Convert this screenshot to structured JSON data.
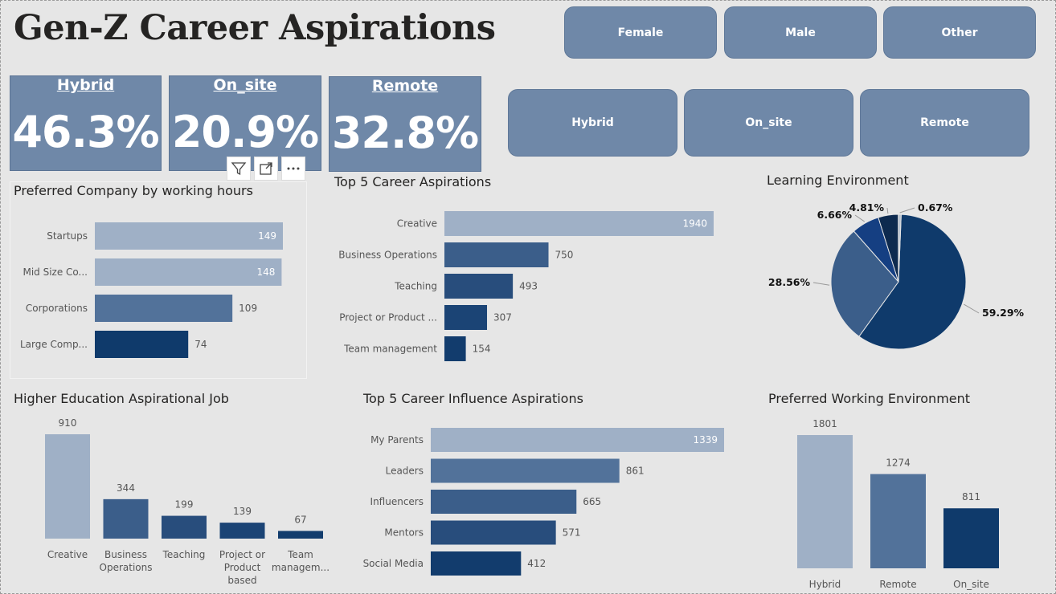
{
  "page": {
    "title": "Gen-Z Career Aspirations"
  },
  "slicers": {
    "gender": [
      "Female",
      "Male",
      "Other"
    ],
    "work_mode": [
      "Hybrid",
      "On_site",
      "Remote"
    ]
  },
  "kpis": [
    {
      "label": "Hybrid",
      "value": "46.3%"
    },
    {
      "label": "On_site",
      "value": "20.9%"
    },
    {
      "label": "Remote",
      "value": "32.8%"
    }
  ],
  "visual_header": {
    "filter_icon": "filter-icon",
    "focus_icon": "focus-mode-icon",
    "more_icon": "more-options-icon"
  },
  "colors": {
    "bar_light": "#9fb0c6",
    "bar_mid": "#52729a",
    "bar_dark": "#0f3a6b",
    "slicer": "#6f88a8"
  },
  "chart_data": [
    {
      "id": "company",
      "type": "bar",
      "orientation": "horizontal",
      "title": "Preferred Company by working hours",
      "categories": [
        "Startups",
        "Mid Size Co...",
        "Corporations",
        "Large Comp..."
      ],
      "values": [
        149,
        148,
        109,
        74
      ],
      "value_labels": [
        "149",
        "148",
        "109",
        "74"
      ],
      "colors": [
        "#9fb0c6",
        "#9fb0c6",
        "#52729a",
        "#0f3a6b"
      ],
      "xlim": [
        0,
        149
      ]
    },
    {
      "id": "career",
      "type": "bar",
      "orientation": "horizontal",
      "title": "Top 5 Career Aspirations",
      "categories": [
        "Creative",
        "Business Operations",
        "Teaching",
        "Project or Product ...",
        "Team management"
      ],
      "values": [
        1940,
        750,
        493,
        307,
        154
      ],
      "value_labels": [
        "1940",
        "750",
        "493",
        "307",
        "154"
      ],
      "colors": [
        "#9fb0c6",
        "#3b5e8a",
        "#284d7c",
        "#1b4475",
        "#123c6d"
      ],
      "xlim": [
        0,
        1940
      ]
    },
    {
      "id": "learning",
      "type": "pie",
      "title": "Learning Environment",
      "values": [
        59.29,
        28.56,
        6.66,
        4.81,
        0.67
      ],
      "value_labels": [
        "59.29%",
        "28.56%",
        "6.66%",
        "4.81%",
        "0.67%"
      ],
      "colors": [
        "#0f3a6b",
        "#3b5e8a",
        "#153f82",
        "#0d2a4f",
        "#b7c2d0"
      ]
    },
    {
      "id": "education",
      "type": "bar",
      "orientation": "vertical",
      "title": "Higher Education Aspirational Job",
      "categories": [
        [
          "Creative"
        ],
        [
          "Business",
          "Operations"
        ],
        [
          "Teaching"
        ],
        [
          "Project or",
          "Product",
          "based"
        ],
        [
          "Team",
          "managem..."
        ]
      ],
      "values": [
        910,
        344,
        199,
        139,
        67
      ],
      "value_labels": [
        "910",
        "344",
        "199",
        "139",
        "67"
      ],
      "colors": [
        "#9fb0c6",
        "#3b5e8a",
        "#284d7c",
        "#1b4475",
        "#123c6d"
      ],
      "ylim": [
        0,
        910
      ]
    },
    {
      "id": "influence",
      "type": "bar",
      "orientation": "horizontal",
      "title": "Top 5 Career Influence Aspirations",
      "categories": [
        "My Parents",
        "Leaders",
        "Influencers",
        "Mentors",
        "Social Media"
      ],
      "values": [
        1339,
        861,
        665,
        571,
        412
      ],
      "value_labels": [
        "1339",
        "861",
        "665",
        "571",
        "412"
      ],
      "colors": [
        "#9fb0c6",
        "#52729a",
        "#3b5e8a",
        "#284d7c",
        "#123c6d"
      ],
      "xlim": [
        0,
        1339
      ]
    },
    {
      "id": "working_env",
      "type": "bar",
      "orientation": "vertical",
      "title": "Preferred Working Environment",
      "categories": [
        [
          "Hybrid"
        ],
        [
          "Remote"
        ],
        [
          "On_site"
        ]
      ],
      "values": [
        1801,
        1274,
        811
      ],
      "value_labels": [
        "1801",
        "1274",
        "811"
      ],
      "colors": [
        "#9fb0c6",
        "#52729a",
        "#0f3a6b"
      ],
      "ylim": [
        0,
        1801
      ]
    }
  ]
}
